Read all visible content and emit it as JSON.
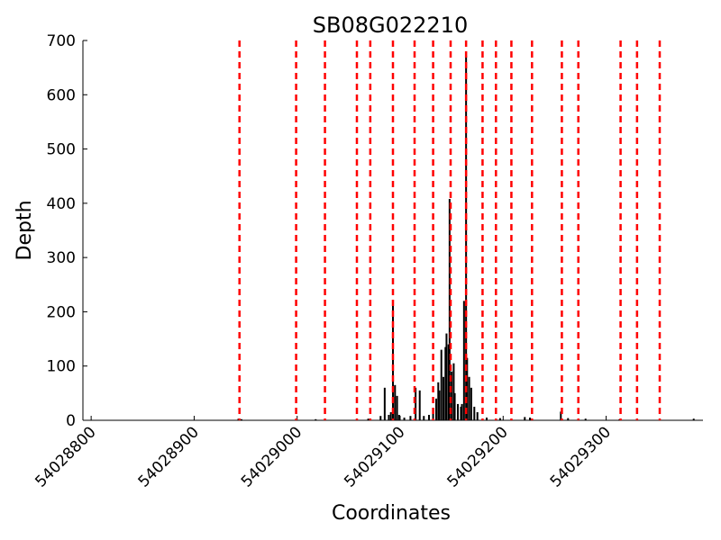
{
  "chart_data": {
    "type": "bar",
    "title": "SB08G022210",
    "xlabel": "Coordinates",
    "ylabel": "Depth",
    "x": [
      54028943,
      54028946,
      54029018,
      54029069,
      54029081,
      54029085,
      54029089,
      54029091,
      54029093,
      54029095,
      54029097,
      54029099,
      54029104,
      54029110,
      54029115,
      54029119,
      54029123,
      54029128,
      54029132,
      54029135,
      54029137,
      54029138,
      54029140,
      54029142,
      54029144,
      54029145,
      54029147,
      54029148,
      54029150,
      54029152,
      54029153,
      54029156,
      54029159,
      54029160,
      54029162,
      54029164,
      54029165,
      54029167,
      54029169,
      54029172,
      54029175,
      54029184,
      54029197,
      54029221,
      54029226,
      54029256,
      54029263,
      54029280,
      54029313,
      54029385
    ],
    "values": [
      3,
      2,
      2,
      3,
      8,
      60,
      10,
      15,
      215,
      65,
      45,
      10,
      5,
      8,
      60,
      55,
      8,
      10,
      20,
      40,
      70,
      55,
      130,
      80,
      135,
      160,
      140,
      408,
      90,
      105,
      50,
      30,
      25,
      30,
      220,
      672,
      115,
      80,
      60,
      25,
      15,
      5,
      4,
      6,
      5,
      16,
      4,
      3,
      2,
      3
    ],
    "color": "#000000",
    "vlines": [
      54028944,
      54028999,
      54029027,
      54029058,
      54029071,
      54029093,
      54029114,
      54029132,
      54029149,
      54029164,
      54029180,
      54029193,
      54029208,
      54029228,
      54029257,
      54029273,
      54029314,
      54029330,
      54029352
    ],
    "vline_color": "#ff0000",
    "xlim": [
      54028792,
      54029394
    ],
    "xticks": [
      54028800,
      54028900,
      54029000,
      54029100,
      54029200,
      54029300
    ],
    "ylim": [
      0,
      700
    ],
    "yticks": [
      0,
      100,
      200,
      300,
      400,
      500,
      600,
      700
    ]
  }
}
